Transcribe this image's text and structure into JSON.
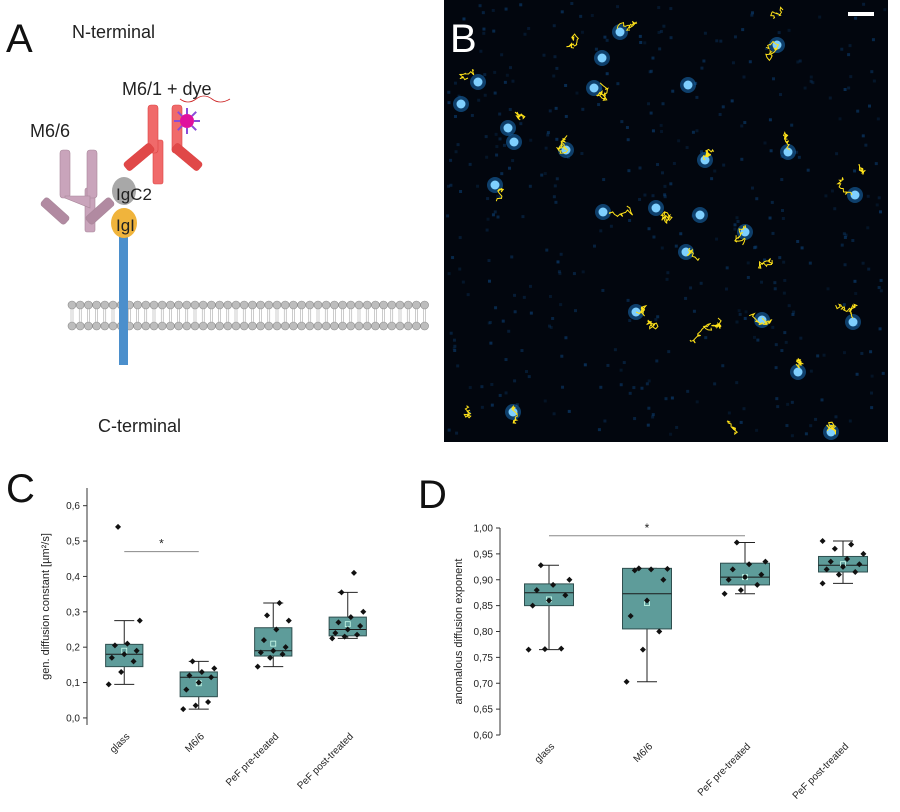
{
  "panels": {
    "A": {
      "letter": "A",
      "n_terminal": "N-terminal",
      "c_terminal": "C-terminal",
      "antibody_1": "M6/6",
      "antibody_2": "M6/1 + dye",
      "domain_1": "IgC2",
      "domain_2": "IgI"
    },
    "B": {
      "letter": "B"
    },
    "C": {
      "letter": "C"
    },
    "D": {
      "letter": "D"
    }
  },
  "colors": {
    "box_fill": "#5e9c9a",
    "antibody_m66": "#c9a4bb",
    "antibody_m61": "#f06a6a",
    "igc2": "#a8a8a8",
    "igi": "#f0b43c",
    "stalk": "#4b8fcc",
    "membrane": "#bdbdbd",
    "dye": "#e0109e",
    "image_bg": "#02060e",
    "spot": "#7fd0ff",
    "track": "#ffe21a"
  },
  "chart_data": [
    {
      "type": "box",
      "panel": "C",
      "ylabel": "gen. diffusion constant [µm²/s]",
      "ylim": [
        -0.02,
        0.65
      ],
      "yticks": [
        0.0,
        0.1,
        0.2,
        0.3,
        0.4,
        0.5,
        0.6
      ],
      "ytick_labels": [
        "0,0",
        "0,1",
        "0,2",
        "0,3",
        "0,4",
        "0,5",
        "0,6"
      ],
      "categories": [
        "glass",
        "M6/6",
        "PeF pre-treated",
        "PeF post-treated"
      ],
      "boxes": [
        {
          "q1": 0.145,
          "median": 0.18,
          "q3": 0.208,
          "whisker_low": 0.095,
          "whisker_high": 0.275,
          "mean": 0.19,
          "points": [
            0.095,
            0.13,
            0.16,
            0.17,
            0.18,
            0.19,
            0.205,
            0.21,
            0.275,
            0.54
          ]
        },
        {
          "q1": 0.06,
          "median": 0.115,
          "q3": 0.13,
          "whisker_low": 0.025,
          "whisker_high": 0.16,
          "mean": 0.098,
          "points": [
            0.025,
            0.035,
            0.045,
            0.08,
            0.1,
            0.115,
            0.12,
            0.13,
            0.14,
            0.16
          ]
        },
        {
          "q1": 0.175,
          "median": 0.19,
          "q3": 0.255,
          "whisker_low": 0.145,
          "whisker_high": 0.325,
          "mean": 0.21,
          "points": [
            0.145,
            0.17,
            0.18,
            0.185,
            0.19,
            0.2,
            0.22,
            0.25,
            0.275,
            0.29,
            0.325
          ]
        },
        {
          "q1": 0.232,
          "median": 0.25,
          "q3": 0.285,
          "whisker_low": 0.225,
          "whisker_high": 0.355,
          "mean": 0.265,
          "points": [
            0.225,
            0.23,
            0.235,
            0.24,
            0.25,
            0.26,
            0.27,
            0.285,
            0.3,
            0.355,
            0.41
          ]
        }
      ],
      "significance": {
        "from": 0,
        "to": 1,
        "value": 0.47,
        "label": "*"
      }
    },
    {
      "type": "box",
      "panel": "D",
      "ylabel": "anomalous diffusion exponent",
      "ylim": [
        0.6,
        1.0
      ],
      "yticks": [
        0.6,
        0.65,
        0.7,
        0.75,
        0.8,
        0.85,
        0.9,
        0.95,
        1.0
      ],
      "ytick_labels": [
        "0,60",
        "0,65",
        "0,70",
        "0,75",
        "0,80",
        "0,85",
        "0,90",
        "0,95",
        "1,00"
      ],
      "categories": [
        "glass",
        "M6/6",
        "PeF pre-treated",
        "PeF post-treated"
      ],
      "boxes": [
        {
          "q1": 0.85,
          "median": 0.875,
          "q3": 0.892,
          "whisker_low": 0.765,
          "whisker_high": 0.928,
          "mean": 0.862,
          "points": [
            0.765,
            0.766,
            0.767,
            0.85,
            0.86,
            0.87,
            0.88,
            0.89,
            0.9,
            0.928
          ]
        },
        {
          "q1": 0.805,
          "median": 0.873,
          "q3": 0.922,
          "whisker_low": 0.703,
          "whisker_high": 0.922,
          "mean": 0.855,
          "points": [
            0.703,
            0.765,
            0.8,
            0.83,
            0.86,
            0.9,
            0.918,
            0.92,
            0.921,
            0.922
          ]
        },
        {
          "q1": 0.89,
          "median": 0.905,
          "q3": 0.932,
          "whisker_low": 0.873,
          "whisker_high": 0.972,
          "mean": 0.905,
          "points": [
            0.873,
            0.88,
            0.89,
            0.9,
            0.905,
            0.91,
            0.92,
            0.93,
            0.935,
            0.972
          ]
        },
        {
          "q1": 0.915,
          "median": 0.928,
          "q3": 0.945,
          "whisker_low": 0.893,
          "whisker_high": 0.975,
          "mean": 0.93,
          "points": [
            0.893,
            0.91,
            0.915,
            0.92,
            0.925,
            0.93,
            0.935,
            0.94,
            0.95,
            0.96,
            0.968,
            0.975
          ]
        }
      ],
      "significance": {
        "from": 0,
        "to": 2,
        "value": 0.985,
        "label": "*"
      }
    }
  ]
}
